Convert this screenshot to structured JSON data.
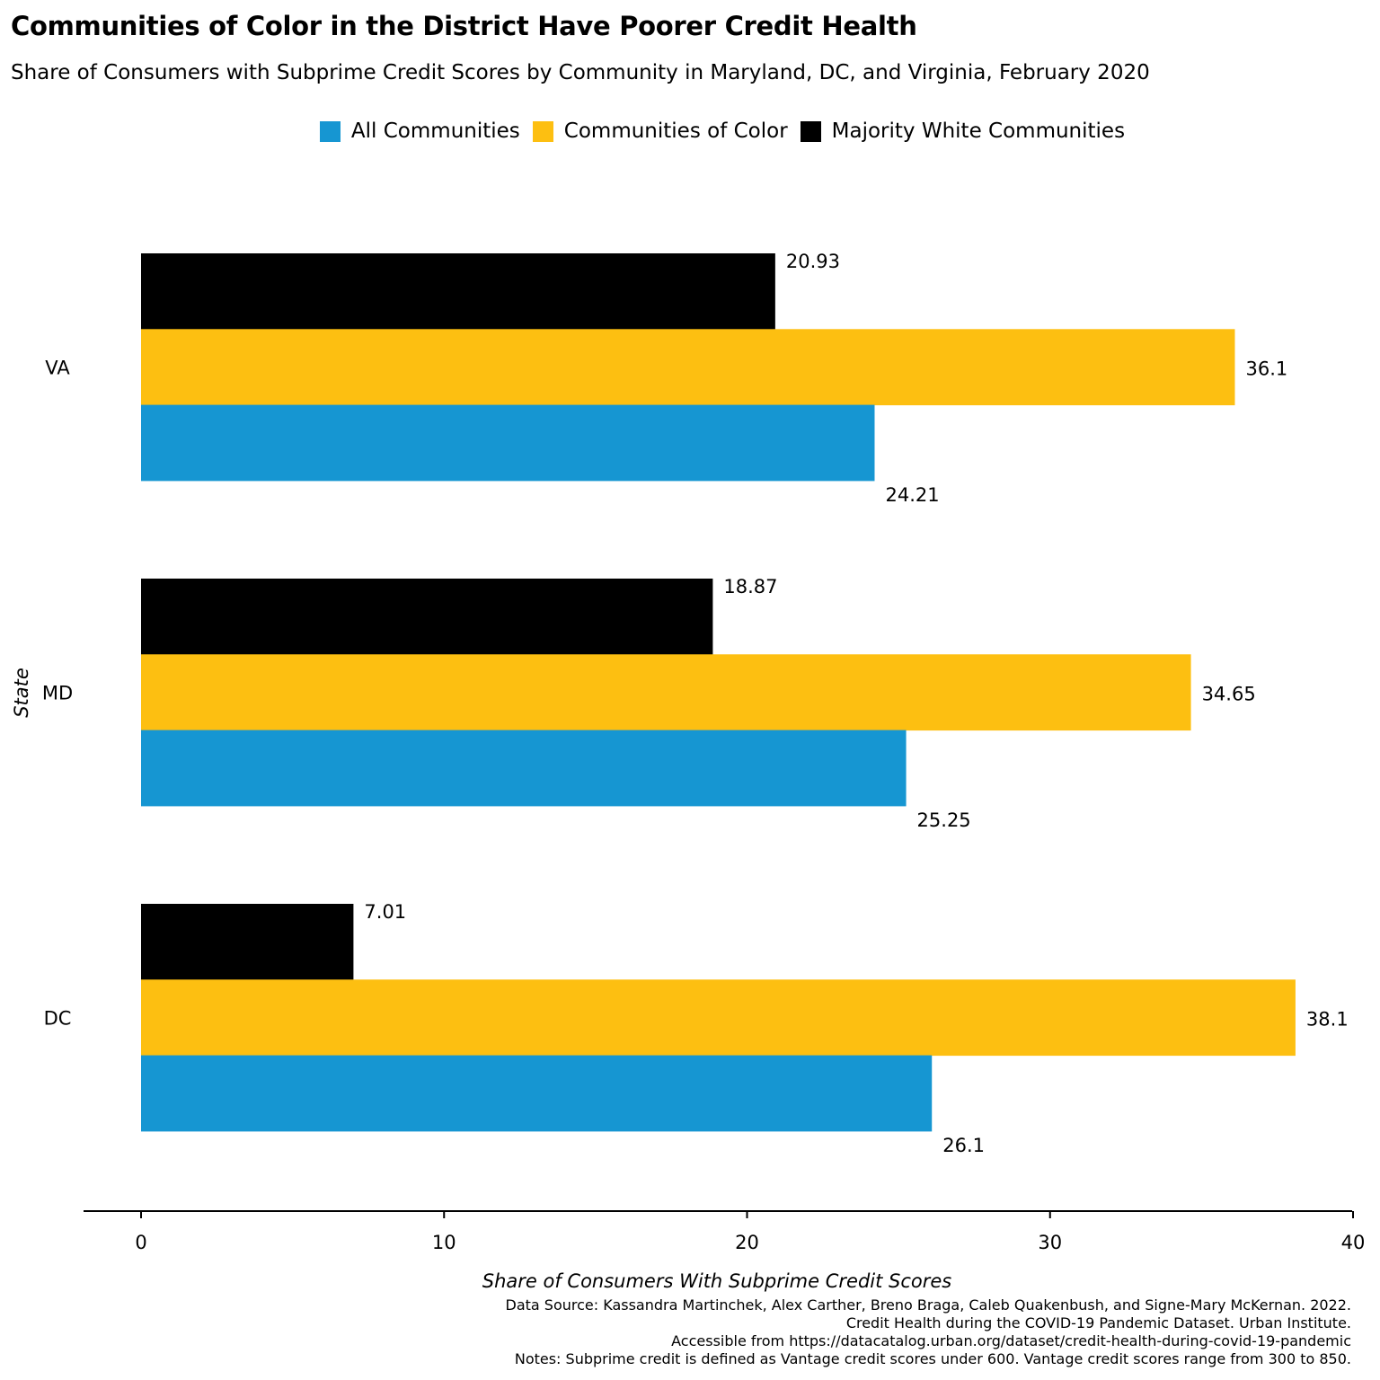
{
  "title": "Communities of Color in the District Have Poorer Credit Health",
  "subtitle": "Share of Consumers with Subprime Credit Scores by Community in Maryland, DC, and Virginia, February 2020",
  "legend": [
    {
      "label": "All Communities",
      "color": "#1696d2"
    },
    {
      "label": "Communities of Color",
      "color": "#fdbf11"
    },
    {
      "label": "Majority White Communities",
      "color": "#000000"
    }
  ],
  "chart_data": {
    "type": "bar",
    "orientation": "horizontal",
    "categories": [
      "VA",
      "MD",
      "DC"
    ],
    "series": [
      {
        "name": "Majority White Communities",
        "color": "#000000",
        "values": [
          20.93,
          18.87,
          7.01
        ],
        "labels": [
          "20.93",
          "18.87",
          "7.01"
        ]
      },
      {
        "name": "Communities of Color",
        "color": "#fdbf11",
        "values": [
          36.1,
          34.65,
          38.1
        ],
        "labels": [
          "36.1",
          "34.65",
          "38.1"
        ]
      },
      {
        "name": "All Communities",
        "color": "#1696d2",
        "values": [
          24.21,
          25.25,
          26.1
        ],
        "labels": [
          "24.21",
          "25.25",
          "26.1"
        ]
      }
    ],
    "xlim": [
      0,
      40
    ],
    "xticks": [
      "0",
      "10",
      "20",
      "30",
      "40"
    ],
    "xlabel": "Share of Consumers With Subprime Credit Scores",
    "ylabel": "State",
    "grid": false,
    "legend_position": "top"
  },
  "notes": [
    "Data Source: Kassandra Martinchek, Alex Carther, Breno Braga, Caleb Quakenbush, and Signe-Mary McKernan. 2022.",
    "Credit Health during the COVID-19 Pandemic Dataset. Urban Institute.",
    "Accessible from https://datacatalog.urban.org/dataset/credit-health-during-covid-19-pandemic",
    "Notes: Subprime credit is defined as Vantage credit scores under 600. Vantage credit scores range from 300 to 850."
  ]
}
